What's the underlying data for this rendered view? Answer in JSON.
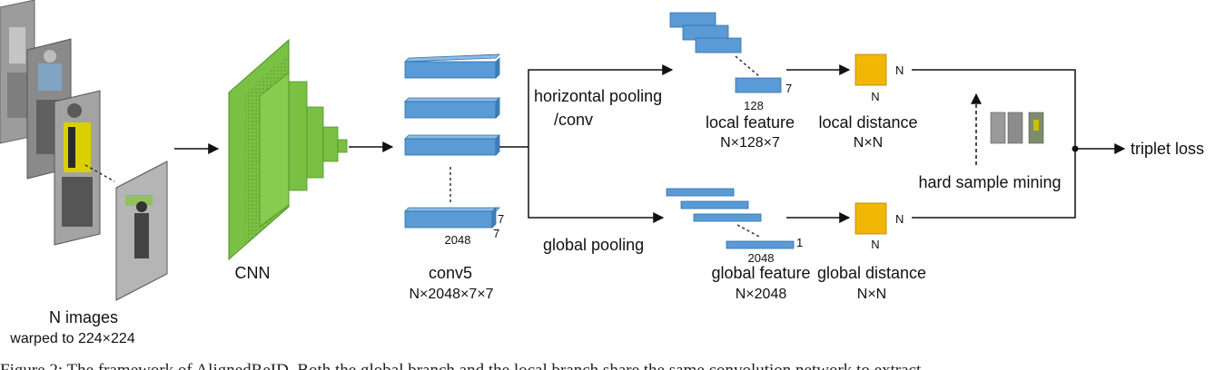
{
  "input": {
    "label": "N images",
    "sublabel": "warped to 224×224"
  },
  "cnn": {
    "label": "CNN"
  },
  "conv5": {
    "label": "conv5",
    "shape": "N×2048×7×7",
    "dim_width": "2048",
    "dim_height": "7",
    "dim_depth": "7"
  },
  "branches": {
    "local_op_line1": "horizontal pooling",
    "local_op_line2": "/conv",
    "global_op": "global pooling"
  },
  "local_feature": {
    "label": "local feature",
    "shape": "N×128×7",
    "dim_width": "128",
    "dim_height": "7"
  },
  "global_feature": {
    "label": "global feature",
    "shape": "N×2048",
    "dim_width": "2048",
    "dim_height": "1"
  },
  "local_distance": {
    "label": "local distance",
    "shape": "N×N",
    "side_right": "N",
    "side_bottom": "N"
  },
  "global_distance": {
    "label": "global distance",
    "shape": "N×N",
    "side_right": "N",
    "side_bottom": "N"
  },
  "mining": {
    "label": "hard sample mining"
  },
  "output": {
    "label": "triplet loss"
  },
  "caption": "Figure 2: The framework of AlignedReID. Both the global branch and the local branch share the same convolution network to extract",
  "colors": {
    "blue": "#5b9bd5",
    "blue_edge": "#2e6fa8",
    "green": "#7ac143",
    "green_dark": "#4f8f2a",
    "yellow": "#f2b705",
    "yellow_edge": "#b08300"
  }
}
